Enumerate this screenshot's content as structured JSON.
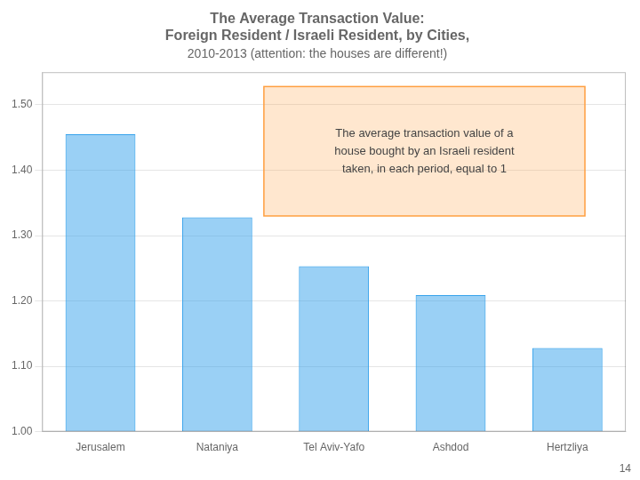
{
  "chart_data": {
    "type": "bar",
    "title": [
      "The Average Transaction Value:",
      "Foreign Resident / Israeli Resident, by Cities,"
    ],
    "subtitle": "2010-2013 (attention: the houses are different!)",
    "categories": [
      "Jerusalem",
      "Nataniya",
      "Tel Aviv-Yafo",
      "Ashdod",
      "Hertzliya"
    ],
    "values": [
      1.455,
      1.328,
      1.253,
      1.209,
      1.128
    ],
    "ylim": [
      1.0,
      1.55
    ],
    "yticks": [
      {
        "value": 1.0,
        "label": "1.00"
      },
      {
        "value": 1.1,
        "label": "1.10"
      },
      {
        "value": 1.2,
        "label": "1.20"
      },
      {
        "value": 1.3,
        "label": "1.30"
      },
      {
        "value": 1.4,
        "label": "1.40"
      },
      {
        "value": 1.5,
        "label": "1.50"
      }
    ],
    "grid": true,
    "annotations": [
      "The average transaction value of a\nhouse bought by an Israeli resident\ntaken, in each period, equal to 1",
      "14"
    ]
  }
}
